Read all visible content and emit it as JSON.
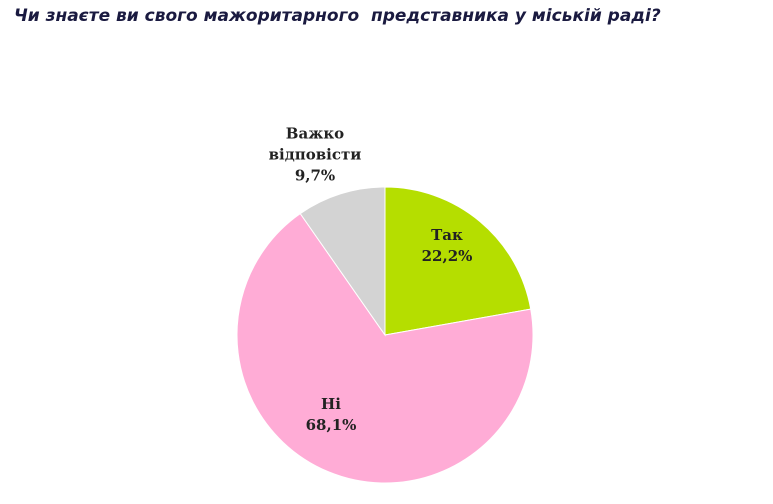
{
  "chart_data": {
    "type": "pie",
    "title": "Чи знаєте ви свого мажоритарного  представника у міській раді?",
    "categories": [
      "Так",
      "Ні",
      "Важко відповісти"
    ],
    "values": [
      22.2,
      68.1,
      9.7
    ],
    "value_labels": [
      "22,2%",
      "68,1%",
      "9,7%"
    ],
    "colors": [
      "#b5de00",
      "#ffacd6",
      "#d3d3d3"
    ]
  }
}
